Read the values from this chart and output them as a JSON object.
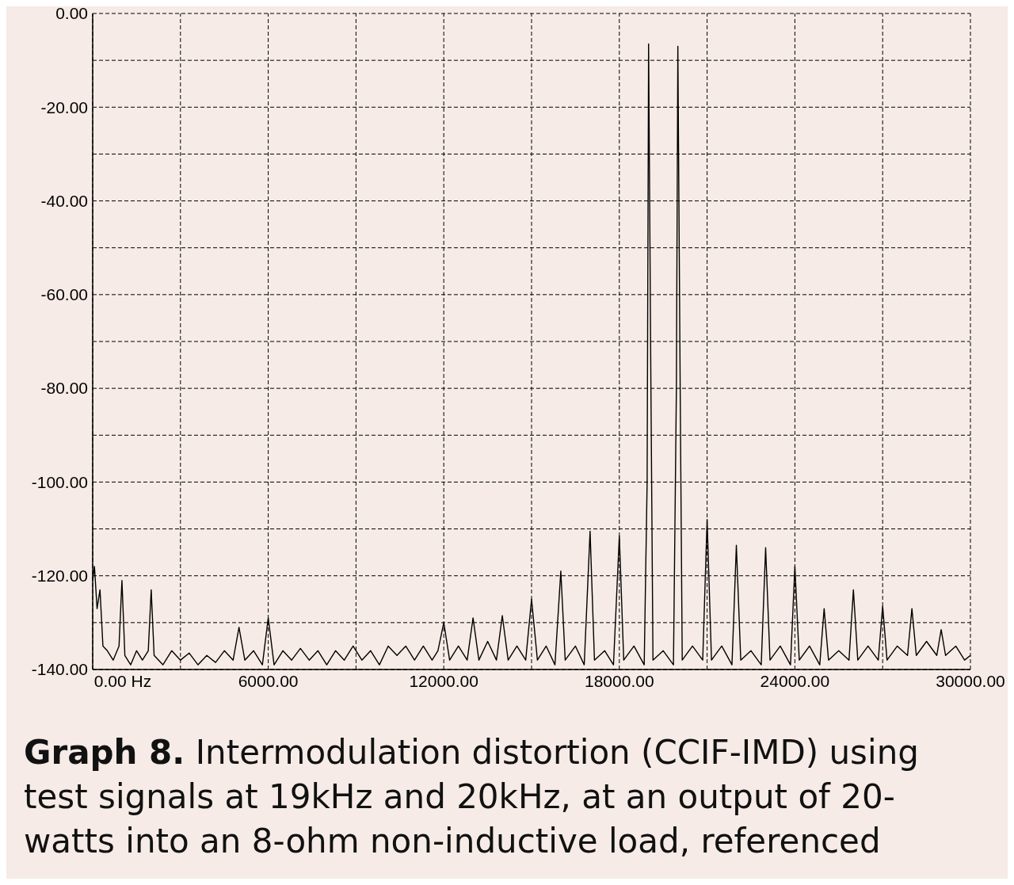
{
  "chart_data": {
    "type": "line",
    "title": "Graph 8.",
    "subtitle": "Intermodulation distortion (CCIF-IMD) using test signals at 19kHz and 20kHz, at an output of 20-watts into an 8-ohm non-inductive load, referenced",
    "x": [
      0,
      60,
      150,
      250,
      350,
      500,
      700,
      900,
      1000,
      1100,
      1300,
      1500,
      1700,
      1900,
      2000,
      2100,
      2400,
      2700,
      3000,
      3300,
      3600,
      3900,
      4200,
      4500,
      4800,
      5000,
      5200,
      5500,
      5800,
      6000,
      6200,
      6500,
      6800,
      7100,
      7400,
      7700,
      8000,
      8300,
      8600,
      8900,
      9200,
      9500,
      9800,
      10100,
      10400,
      10700,
      11000,
      11300,
      11600,
      11800,
      12000,
      12200,
      12500,
      12800,
      13000,
      13200,
      13500,
      13800,
      14000,
      14200,
      14500,
      14800,
      15000,
      15200,
      15500,
      15800,
      16000,
      16150,
      16500,
      16800,
      17000,
      17150,
      17500,
      17800,
      18000,
      18150,
      18500,
      18850,
      18950,
      19000,
      19080,
      19150,
      19500,
      19850,
      19950,
      20000,
      20080,
      20150,
      20500,
      20850,
      21000,
      21150,
      21500,
      21850,
      22000,
      22150,
      22500,
      22850,
      23000,
      23150,
      23500,
      23850,
      24000,
      24150,
      24500,
      24850,
      25000,
      25150,
      25500,
      25850,
      26000,
      26150,
      26500,
      26850,
      27000,
      27150,
      27500,
      27850,
      28000,
      28150,
      28500,
      28850,
      29000,
      29150,
      29500,
      29800,
      30000
    ],
    "values": [
      -121,
      -118,
      -127,
      -123,
      -135,
      -136,
      -138,
      -135,
      -121,
      -137,
      -139,
      -136,
      -138,
      -136,
      -123,
      -137,
      -139,
      -136,
      -138,
      -136.5,
      -139,
      -137,
      -138.5,
      -136,
      -138,
      -131,
      -138,
      -136,
      -139,
      -129,
      -139,
      -136,
      -138,
      -135.5,
      -138,
      -136,
      -139,
      -136,
      -138,
      -135,
      -138,
      -136,
      -139,
      -135,
      -137,
      -135,
      -138,
      -135,
      -138,
      -136,
      -130,
      -138,
      -135,
      -138,
      -129,
      -138,
      -134,
      -138,
      -128.5,
      -138,
      -135,
      -138,
      -125,
      -138,
      -135,
      -139,
      -119,
      -138,
      -135,
      -139,
      -110.5,
      -138,
      -136,
      -139,
      -111.5,
      -138,
      -135,
      -139,
      -100,
      -6.5,
      -80,
      -138,
      -136,
      -139,
      -80,
      -7,
      -80,
      -138,
      -135,
      -138,
      -108,
      -138,
      -135,
      -139,
      -113.5,
      -138,
      -136,
      -139,
      -114,
      -138,
      -135,
      -139,
      -118,
      -138,
      -135,
      -139,
      -127,
      -138,
      -136,
      -138,
      -123,
      -138,
      -135,
      -138,
      -126.5,
      -138,
      -135,
      -137,
      -127,
      -137,
      -134,
      -137,
      -131.5,
      -137,
      -135,
      -138,
      -137
    ],
    "color": "#000000",
    "line_style": "solid",
    "marker": "none",
    "grid": true,
    "xlim": [
      0,
      30000
    ],
    "xticks": [
      {
        "value": 0,
        "label": "0.00 Hz"
      },
      {
        "value": 3000,
        "label": null
      },
      {
        "value": 6000,
        "label": "6000.00"
      },
      {
        "value": 9000,
        "label": null
      },
      {
        "value": 12000,
        "label": "12000.00"
      },
      {
        "value": 15000,
        "label": null
      },
      {
        "value": 18000,
        "label": "18000.00"
      },
      {
        "value": 21000,
        "label": null
      },
      {
        "value": 24000,
        "label": "24000.00"
      },
      {
        "value": 27000,
        "label": null
      },
      {
        "value": 30000,
        "label": "30000.00"
      }
    ],
    "ylim": [
      -140,
      0
    ],
    "yticks": [
      {
        "value": -140,
        "label": "-140.00"
      },
      {
        "value": -130,
        "label": null
      },
      {
        "value": -120,
        "label": "-120.00"
      },
      {
        "value": -110,
        "label": null
      },
      {
        "value": -100,
        "label": "-100.00"
      },
      {
        "value": -90,
        "label": null
      },
      {
        "value": -80,
        "label": "-80.00"
      },
      {
        "value": -70,
        "label": null
      },
      {
        "value": -60,
        "label": "-60.00"
      },
      {
        "value": -50,
        "label": null
      },
      {
        "value": -40,
        "label": "-40.00"
      },
      {
        "value": -30,
        "label": null
      },
      {
        "value": -20,
        "label": "-20.00"
      },
      {
        "value": -10,
        "label": null
      },
      {
        "value": 0,
        "label": "0.00"
      }
    ]
  }
}
